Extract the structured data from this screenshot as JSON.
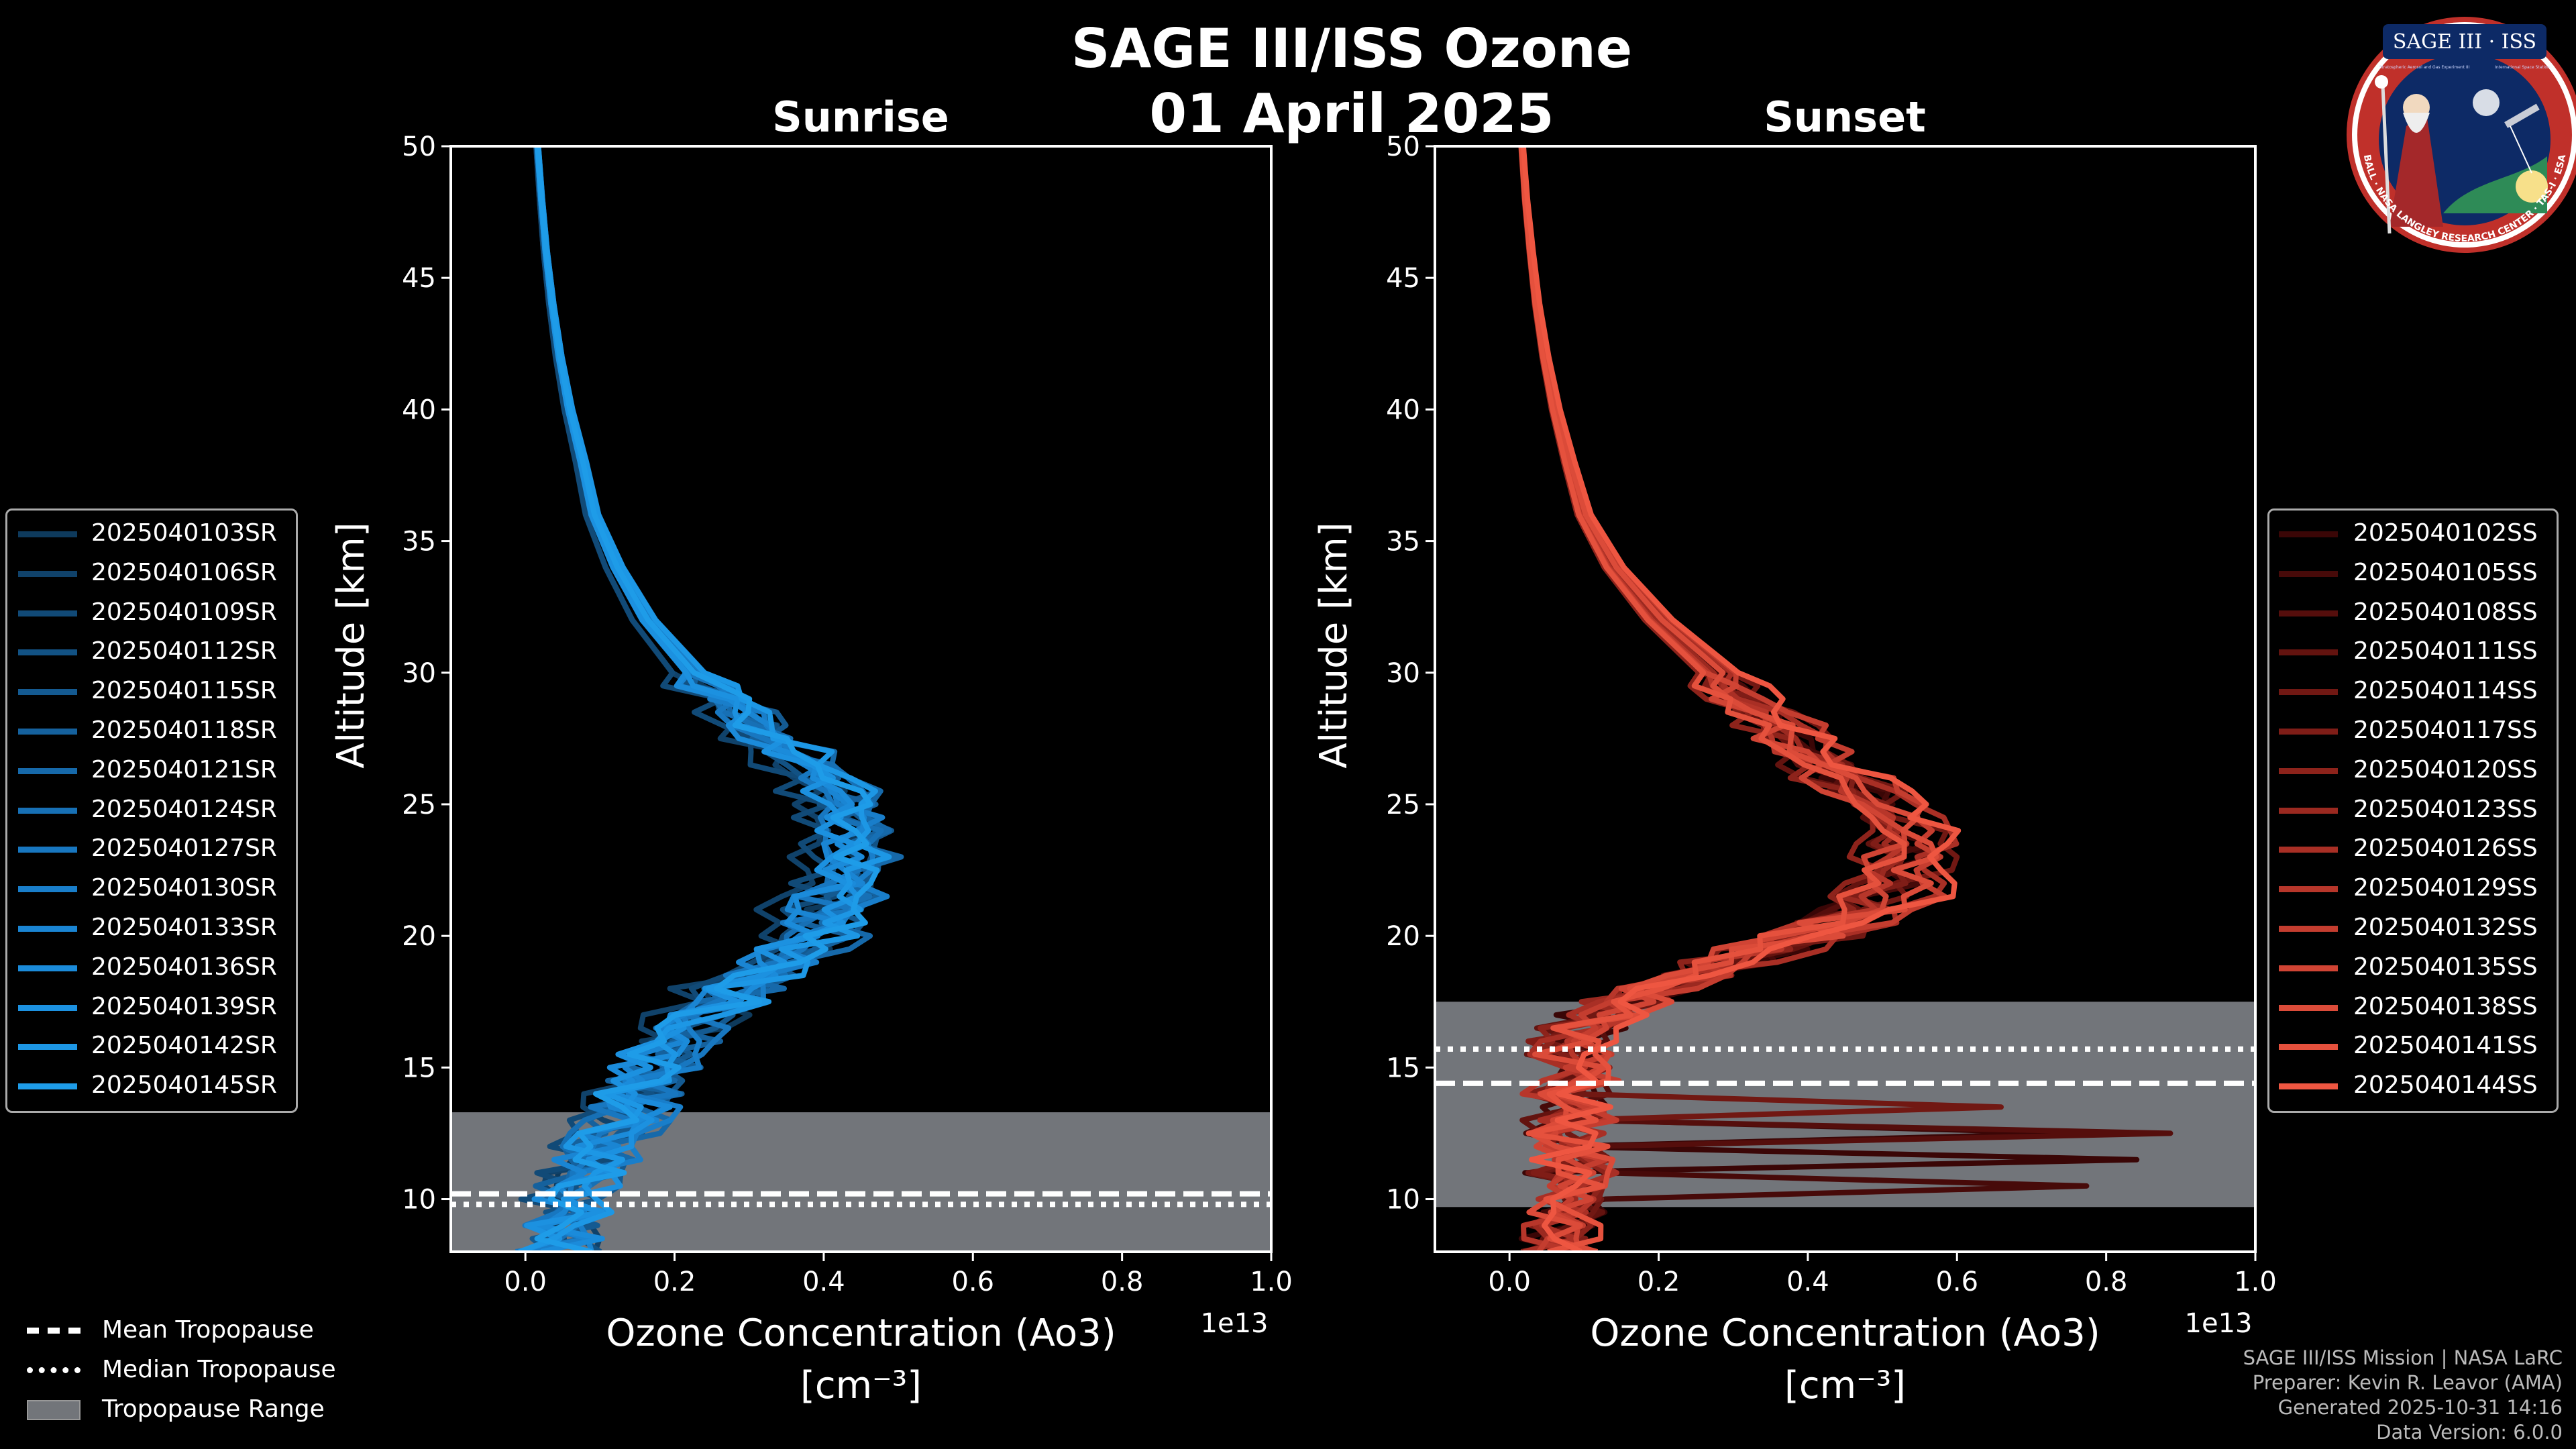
{
  "title": "SAGE III/ISS Ozone",
  "date": "01 April 2025",
  "colors": {
    "sunrise": "#1E9CE0",
    "sunset": "#EE5540",
    "tropopause_band": "#72757a"
  },
  "chart_data": [
    {
      "type": "line",
      "panel": "Sunrise",
      "title": "Sunrise",
      "xlabel": "Ozone Concentration (Ao3)",
      "xlabel_units": "[cm⁻³]",
      "ylabel": "Altitude [km]",
      "x_offset_label": "1e13",
      "xlim": [
        -0.1,
        1.0
      ],
      "ylim": [
        8,
        50
      ],
      "xticks": [
        0.0,
        0.2,
        0.4,
        0.6,
        0.8,
        1.0
      ],
      "xtick_labels": [
        "0.0",
        "0.2",
        "0.4",
        "0.6",
        "0.8",
        "1.0"
      ],
      "yticks": [
        10,
        15,
        20,
        25,
        30,
        35,
        40,
        45,
        50
      ],
      "ytick_labels": [
        "10",
        "15",
        "20",
        "25",
        "30",
        "35",
        "40",
        "45",
        "50"
      ],
      "tropopause": {
        "mean": 10.2,
        "median": 9.8,
        "range": [
          8.0,
          13.3
        ]
      },
      "profile_shape": {
        "altitude": [
          8,
          10,
          12,
          14,
          16,
          18,
          19,
          20,
          21,
          22,
          23,
          24,
          25,
          26,
          27,
          28,
          30,
          32,
          34,
          36,
          38,
          40,
          42,
          44,
          46,
          48,
          50
        ],
        "concentration": [
          0.04,
          0.06,
          0.1,
          0.15,
          0.2,
          0.28,
          0.33,
          0.37,
          0.4,
          0.42,
          0.43,
          0.43,
          0.42,
          0.39,
          0.35,
          0.3,
          0.22,
          0.16,
          0.12,
          0.09,
          0.075,
          0.058,
          0.045,
          0.035,
          0.027,
          0.021,
          0.016
        ]
      },
      "series": [
        {
          "name": "2025040103SR",
          "color": "#0E3A5C"
        },
        {
          "name": "2025040106SR",
          "color": "#10426A"
        },
        {
          "name": "2025040109SR",
          "color": "#114A77"
        },
        {
          "name": "2025040112SR",
          "color": "#125284"
        },
        {
          "name": "2025040115SR",
          "color": "#145A91"
        },
        {
          "name": "2025040118SR",
          "color": "#15619D"
        },
        {
          "name": "2025040121SR",
          "color": "#1669AA"
        },
        {
          "name": "2025040124SR",
          "color": "#1770B5"
        },
        {
          "name": "2025040127SR",
          "color": "#1877C0"
        },
        {
          "name": "2025040130SR",
          "color": "#197ECA"
        },
        {
          "name": "2025040133SR",
          "color": "#1A85D3"
        },
        {
          "name": "2025040136SR",
          "color": "#1B8BDA"
        },
        {
          "name": "2025040139SR",
          "color": "#1C91E0"
        },
        {
          "name": "2025040142SR",
          "color": "#1D97E5"
        },
        {
          "name": "2025040145SR",
          "color": "#1E9CE8"
        }
      ]
    },
    {
      "type": "line",
      "panel": "Sunset",
      "title": "Sunset",
      "xlabel": "Ozone Concentration (Ao3)",
      "xlabel_units": "[cm⁻³]",
      "ylabel": "Altitude [km]",
      "x_offset_label": "1e13",
      "xlim": [
        -0.1,
        1.0
      ],
      "ylim": [
        8,
        50
      ],
      "xticks": [
        0.0,
        0.2,
        0.4,
        0.6,
        0.8,
        1.0
      ],
      "xtick_labels": [
        "0.0",
        "0.2",
        "0.4",
        "0.6",
        "0.8",
        "1.0"
      ],
      "yticks": [
        10,
        15,
        20,
        25,
        30,
        35,
        40,
        45,
        50
      ],
      "ytick_labels": [
        "10",
        "15",
        "20",
        "25",
        "30",
        "35",
        "40",
        "45",
        "50"
      ],
      "tropopause": {
        "mean": 14.4,
        "median": 15.7,
        "range": [
          9.7,
          17.5
        ]
      },
      "profile_shape": {
        "altitude": [
          8,
          10,
          12,
          14,
          16,
          17,
          18,
          19,
          20,
          21,
          22,
          23,
          24,
          25,
          26,
          27,
          28,
          30,
          32,
          34,
          36,
          38,
          40,
          42,
          44,
          46,
          48,
          50
        ],
        "concentration": [
          0.07,
          0.08,
          0.08,
          0.08,
          0.08,
          0.12,
          0.2,
          0.3,
          0.4,
          0.47,
          0.52,
          0.54,
          0.53,
          0.5,
          0.45,
          0.4,
          0.36,
          0.28,
          0.2,
          0.14,
          0.1,
          0.08,
          0.062,
          0.048,
          0.037,
          0.029,
          0.022,
          0.017
        ]
      },
      "series": [
        {
          "name": "2025040102SS",
          "color": "#3A0606"
        },
        {
          "name": "2025040105SS",
          "color": "#470A09"
        },
        {
          "name": "2025040108SS",
          "color": "#550E0C"
        },
        {
          "name": "2025040111SS",
          "color": "#63130F"
        },
        {
          "name": "2025040114SS",
          "color": "#711813"
        },
        {
          "name": "2025040117SS",
          "color": "#7F1D17"
        },
        {
          "name": "2025040120SS",
          "color": "#8D231B"
        },
        {
          "name": "2025040123SS",
          "color": "#9B2920"
        },
        {
          "name": "2025040126SS",
          "color": "#A92F25"
        },
        {
          "name": "2025040129SS",
          "color": "#B7362A"
        },
        {
          "name": "2025040132SS",
          "color": "#C43D2F"
        },
        {
          "name": "2025040135SS",
          "color": "#D04434"
        },
        {
          "name": "2025040138SS",
          "color": "#DB4B39"
        },
        {
          "name": "2025040141SS",
          "color": "#E5513D"
        },
        {
          "name": "2025040144SS",
          "color": "#EE5641"
        }
      ]
    }
  ],
  "tropopause_legend": [
    {
      "label": "Mean Tropopause",
      "style": "dashed"
    },
    {
      "label": "Median Tropopause",
      "style": "dotted"
    },
    {
      "label": "Tropopause Range",
      "style": "patch"
    }
  ],
  "footer": [
    "SAGE III/ISS Mission | NASA LaRC",
    "Preparer: Kevin R. Leavor (AMA)",
    "Generated 2025-10-31 14:16",
    "Data Version: 6.0.0"
  ],
  "badge": {
    "title": "SAGE III · ISS",
    "subtitle_left": "Stratospheric Aerosol and Gas Experiment III",
    "subtitle_right": "International Space Station",
    "ring_text": "BALL · NASA LANGLEY RESEARCH CENTER · TAS-I · ESA"
  }
}
